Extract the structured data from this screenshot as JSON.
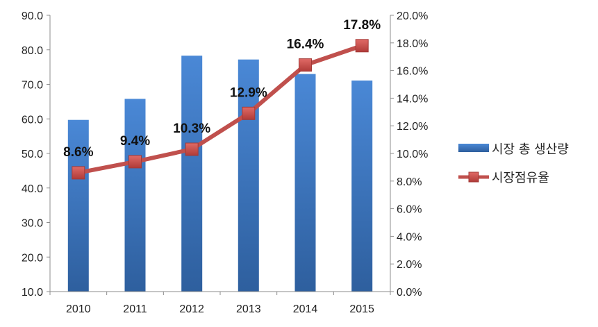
{
  "chart_data": {
    "type": "bar",
    "categories": [
      "2010",
      "2011",
      "2012",
      "2013",
      "2014",
      "2015"
    ],
    "series": [
      {
        "name": "시장 총 생산량",
        "type": "bar",
        "axis": "left",
        "values": [
          59.7,
          65.8,
          78.3,
          77.2,
          73.0,
          71.1
        ],
        "color": "#3F7CC8"
      },
      {
        "name": "시장점유율",
        "type": "line",
        "axis": "right",
        "values": [
          8.6,
          9.4,
          10.3,
          12.9,
          16.4,
          17.8
        ],
        "labels": [
          "8.6%",
          "9.4%",
          "10.3%",
          "12.9%",
          "16.4%",
          "17.8%"
        ],
        "color": "#C0504D"
      }
    ],
    "y_left": {
      "min": 10,
      "max": 90,
      "ticks": [
        "10.0",
        "20.0",
        "30.0",
        "40.0",
        "50.0",
        "60.0",
        "70.0",
        "80.0",
        "90.0"
      ]
    },
    "y_right": {
      "min": 0,
      "max": 20,
      "ticks": [
        "0.0%",
        "2.0%",
        "4.0%",
        "6.0%",
        "8.0%",
        "10.0%",
        "12.0%",
        "14.0%",
        "16.0%",
        "18.0%",
        "20.0%"
      ]
    },
    "title": "",
    "xlabel": "",
    "ylabel": "",
    "grid": false,
    "legend": "right"
  }
}
